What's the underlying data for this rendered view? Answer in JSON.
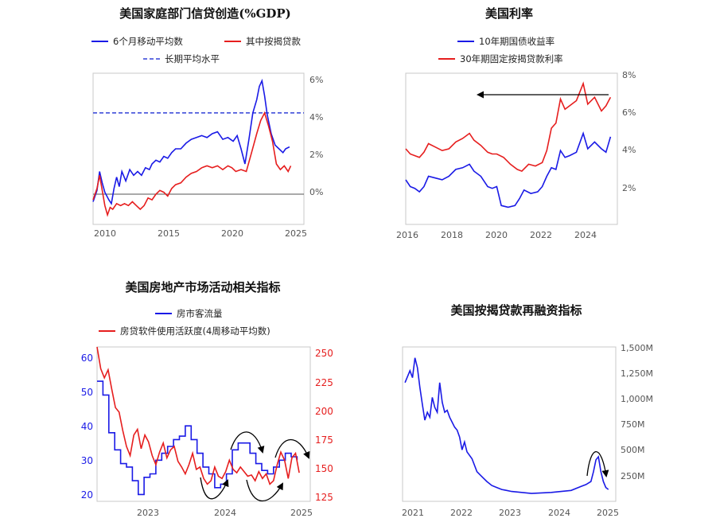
{
  "chart_data": [
    {
      "type": "line",
      "title": "美国家庭部门信贷创造(%GDP)",
      "legend": [
        "6个月移动平均数",
        "其中按揭贷款",
        "长期平均水平"
      ],
      "colors": {
        "blue": "#1a1ae6",
        "red": "#e61e1e",
        "dashed": "#3040d8"
      },
      "x_ticks": [
        "2010",
        "2015",
        "2020",
        "2025"
      ],
      "y_ticks": [
        "6%",
        "4%",
        "2%",
        "0%"
      ],
      "xlim": [
        2009.5,
        2025.6
      ],
      "ylim": [
        -1.6,
        6.4
      ],
      "long_term_average": 4.3,
      "series": [
        {
          "name": "6个月移动平均数",
          "x": [
            2009.5,
            2009.8,
            2010.0,
            2010.2,
            2010.4,
            2010.7,
            2010.9,
            2011.1,
            2011.3,
            2011.5,
            2011.7,
            2012.0,
            2012.3,
            2012.6,
            2012.9,
            2013.2,
            2013.5,
            2013.8,
            2014.0,
            2014.3,
            2014.6,
            2014.9,
            2015.2,
            2015.5,
            2015.8,
            2016.2,
            2016.6,
            2017.0,
            2017.4,
            2017.8,
            2018.2,
            2018.6,
            2019.0,
            2019.4,
            2019.8,
            2020.2,
            2020.5,
            2020.8,
            2021.1,
            2021.4,
            2021.7,
            2022.0,
            2022.2,
            2022.4,
            2022.6,
            2022.8,
            2023.1,
            2023.4,
            2023.7,
            2024.0,
            2024.2,
            2024.5
          ],
          "y": [
            -0.4,
            0.2,
            1.2,
            0.6,
            0.1,
            -0.3,
            -0.5,
            0.3,
            0.9,
            0.4,
            1.2,
            0.7,
            1.3,
            1.0,
            1.2,
            1.0,
            1.4,
            1.3,
            1.6,
            1.8,
            1.7,
            2.0,
            1.9,
            2.2,
            2.4,
            2.4,
            2.7,
            2.9,
            3.0,
            3.1,
            3.0,
            3.2,
            3.3,
            2.9,
            3.0,
            2.8,
            3.1,
            2.4,
            1.6,
            2.9,
            4.3,
            5.0,
            5.7,
            6.0,
            5.2,
            4.2,
            3.2,
            2.6,
            2.4,
            2.2,
            2.4,
            2.5
          ]
        },
        {
          "name": "其中按揭贷款",
          "x": [
            2009.5,
            2009.8,
            2010.0,
            2010.2,
            2010.4,
            2010.6,
            2010.8,
            2011.0,
            2011.3,
            2011.6,
            2011.9,
            2012.2,
            2012.5,
            2012.8,
            2013.1,
            2013.4,
            2013.7,
            2014.0,
            2014.3,
            2014.6,
            2014.9,
            2015.2,
            2015.5,
            2015.8,
            2016.2,
            2016.6,
            2017.0,
            2017.4,
            2017.8,
            2018.2,
            2018.6,
            2019.0,
            2019.4,
            2019.8,
            2020.1,
            2020.4,
            2020.8,
            2021.2,
            2021.6,
            2022.0,
            2022.3,
            2022.6,
            2022.9,
            2023.2,
            2023.5,
            2023.8,
            2024.1,
            2024.4,
            2024.6
          ],
          "y": [
            -0.3,
            0.3,
            1.0,
            0.2,
            -0.6,
            -1.1,
            -0.7,
            -0.8,
            -0.5,
            -0.6,
            -0.5,
            -0.6,
            -0.4,
            -0.6,
            -0.8,
            -0.6,
            -0.2,
            -0.3,
            0.0,
            0.2,
            0.1,
            -0.1,
            0.3,
            0.5,
            0.6,
            0.9,
            1.1,
            1.2,
            1.4,
            1.5,
            1.4,
            1.5,
            1.3,
            1.5,
            1.4,
            1.2,
            1.3,
            1.2,
            2.2,
            3.2,
            3.9,
            4.3,
            3.6,
            2.8,
            1.6,
            1.3,
            1.5,
            1.2,
            1.5
          ]
        }
      ]
    },
    {
      "type": "line",
      "title": "美国利率",
      "legend": [
        "10年期国债收益率",
        "30年期固定按揭贷款利率"
      ],
      "colors": {
        "blue": "#1a1ae6",
        "red": "#e61e1e"
      },
      "x_ticks": [
        "2016",
        "2018",
        "2020",
        "2022",
        "2024"
      ],
      "y_ticks": [
        "8%",
        "6%",
        "4%",
        "2%"
      ],
      "xlim": [
        2016.0,
        2025.3
      ],
      "ylim": [
        -0.4,
        8.4
      ],
      "series": [
        {
          "name": "10年期国债收益率",
          "x": [
            2016.0,
            2016.2,
            2016.4,
            2016.6,
            2016.8,
            2017.0,
            2017.3,
            2017.6,
            2017.9,
            2018.2,
            2018.5,
            2018.8,
            2019.0,
            2019.3,
            2019.6,
            2019.8,
            2020.0,
            2020.2,
            2020.5,
            2020.8,
            2021.0,
            2021.2,
            2021.5,
            2021.8,
            2022.0,
            2022.2,
            2022.4,
            2022.6,
            2022.8,
            2023.0,
            2023.2,
            2023.5,
            2023.8,
            2024.0,
            2024.3,
            2024.6,
            2024.8,
            2025.0
          ],
          "y": [
            2.2,
            1.8,
            1.7,
            1.5,
            1.8,
            2.4,
            2.3,
            2.2,
            2.4,
            2.8,
            2.9,
            3.1,
            2.7,
            2.4,
            1.8,
            1.7,
            1.8,
            0.7,
            0.6,
            0.7,
            1.1,
            1.6,
            1.4,
            1.5,
            1.8,
            2.4,
            2.9,
            2.8,
            3.9,
            3.5,
            3.6,
            3.8,
            4.9,
            4.0,
            4.4,
            4.0,
            3.8,
            4.7
          ]
        },
        {
          "name": "30年期固定按揭贷款利率",
          "x": [
            2016.0,
            2016.2,
            2016.4,
            2016.6,
            2016.8,
            2017.0,
            2017.3,
            2017.6,
            2017.9,
            2018.2,
            2018.5,
            2018.8,
            2019.0,
            2019.3,
            2019.6,
            2019.8,
            2020.0,
            2020.3,
            2020.6,
            2020.9,
            2021.1,
            2021.4,
            2021.7,
            2022.0,
            2022.2,
            2022.4,
            2022.6,
            2022.8,
            2023.0,
            2023.2,
            2023.5,
            2023.8,
            2024.0,
            2024.3,
            2024.6,
            2024.8,
            2025.0
          ],
          "y": [
            4.0,
            3.7,
            3.6,
            3.5,
            3.8,
            4.3,
            4.1,
            3.9,
            4.0,
            4.4,
            4.6,
            4.9,
            4.5,
            4.2,
            3.8,
            3.7,
            3.7,
            3.5,
            3.1,
            2.8,
            2.7,
            3.1,
            3.0,
            3.2,
            3.9,
            5.2,
            5.5,
            6.9,
            6.3,
            6.5,
            6.8,
            7.8,
            6.6,
            7.0,
            6.2,
            6.5,
            7.0
          ]
        }
      ]
    },
    {
      "type": "line",
      "title": "美国房地产市场活动相关指标",
      "legend": [
        "房市客流量",
        "房贷软件使用活跃度(4周移动平均数)"
      ],
      "colors": {
        "blue": "#1a1ae6",
        "red": "#e61e1e"
      },
      "x_ticks": [
        "2023",
        "2024",
        "2025"
      ],
      "y_left_ticks": [
        "60",
        "50",
        "40",
        "30",
        "20"
      ],
      "y_right_ticks": [
        "250",
        "225",
        "200",
        "175",
        "150",
        "125"
      ],
      "xlim": [
        2022.3,
        2025.2
      ],
      "ylim_left": [
        18,
        63
      ],
      "ylim_right": [
        120,
        255
      ],
      "series": [
        {
          "name": "房市客流量",
          "axis": "left",
          "x": [
            2022.3,
            2022.38,
            2022.46,
            2022.54,
            2022.62,
            2022.7,
            2022.78,
            2022.86,
            2022.94,
            2023.02,
            2023.1,
            2023.18,
            2023.26,
            2023.34,
            2023.42,
            2023.5,
            2023.58,
            2023.66,
            2023.74,
            2023.82,
            2023.9,
            2023.98,
            2024.06,
            2024.14,
            2024.22,
            2024.3,
            2024.38,
            2024.46,
            2024.54,
            2024.62,
            2024.7,
            2024.78,
            2024.86,
            2024.94,
            2025.02
          ],
          "y": [
            53,
            49,
            38,
            33,
            29,
            28,
            24,
            20,
            25,
            26,
            30,
            32,
            34,
            36,
            37,
            40,
            36,
            32,
            28,
            26,
            22,
            23,
            26,
            33,
            35,
            35,
            32,
            29,
            27,
            26,
            28,
            30,
            32,
            31,
            30
          ]
        },
        {
          "name": "房贷软件使用活跃度(4周移动平均数)",
          "axis": "right",
          "x": [
            2022.3,
            2022.35,
            2022.4,
            2022.45,
            2022.5,
            2022.55,
            2022.6,
            2022.65,
            2022.7,
            2022.75,
            2022.8,
            2022.85,
            2022.9,
            2022.95,
            2023.0,
            2023.05,
            2023.1,
            2023.15,
            2023.2,
            2023.25,
            2023.3,
            2023.35,
            2023.4,
            2023.45,
            2023.5,
            2023.55,
            2023.6,
            2023.65,
            2023.7,
            2023.75,
            2023.8,
            2023.85,
            2023.9,
            2023.95,
            2024.0,
            2024.05,
            2024.1,
            2024.15,
            2024.2,
            2024.25,
            2024.3,
            2024.35,
            2024.4,
            2024.45,
            2024.5,
            2024.55,
            2024.6,
            2024.65,
            2024.7,
            2024.75,
            2024.8,
            2024.85,
            2024.9,
            2024.95,
            2025.0,
            2025.05
          ],
          "y": [
            255,
            236,
            228,
            235,
            218,
            202,
            198,
            182,
            168,
            160,
            178,
            183,
            166,
            178,
            172,
            160,
            152,
            163,
            171,
            158,
            165,
            168,
            155,
            150,
            144,
            152,
            162,
            148,
            150,
            140,
            135,
            138,
            150,
            142,
            140,
            146,
            156,
            148,
            145,
            150,
            146,
            142,
            143,
            138,
            146,
            140,
            144,
            135,
            138,
            152,
            163,
            156,
            140,
            158,
            162,
            145
          ]
        }
      ]
    },
    {
      "type": "line",
      "title": "美国按揭贷款再融资指标",
      "colors": {
        "blue": "#1a1ae6"
      },
      "x_ticks": [
        "2021",
        "2022",
        "2023",
        "2024",
        "2025"
      ],
      "y_ticks": [
        "1,500M",
        "1,250M",
        "1,000M",
        "750M",
        "500M",
        "250M"
      ],
      "xlim": [
        2020.8,
        2025.1
      ],
      "ylim": [
        0,
        1560
      ],
      "series": [
        {
          "name": "",
          "x": [
            2020.85,
            2020.95,
            2021.0,
            2021.05,
            2021.1,
            2021.15,
            2021.2,
            2021.25,
            2021.3,
            2021.35,
            2021.4,
            2021.45,
            2021.5,
            2021.55,
            2021.6,
            2021.65,
            2021.7,
            2021.75,
            2021.8,
            2021.85,
            2021.9,
            2021.95,
            2022.0,
            2022.05,
            2022.1,
            2022.2,
            2022.3,
            2022.4,
            2022.5,
            2022.6,
            2022.7,
            2022.8,
            2022.9,
            2023.0,
            2023.2,
            2023.4,
            2023.6,
            2023.8,
            2024.0,
            2024.2,
            2024.4,
            2024.5,
            2024.6,
            2024.65,
            2024.7,
            2024.75,
            2024.8,
            2024.85,
            2024.9,
            2024.95
          ],
          "y": [
            1200,
            1320,
            1250,
            1450,
            1350,
            1150,
            980,
            820,
            900,
            850,
            1050,
            950,
            900,
            1200,
            1000,
            900,
            920,
            850,
            800,
            750,
            720,
            650,
            520,
            600,
            500,
            430,
            300,
            250,
            200,
            160,
            140,
            120,
            110,
            100,
            90,
            80,
            85,
            90,
            100,
            110,
            150,
            170,
            200,
            300,
            420,
            450,
            300,
            200,
            140,
            120
          ]
        }
      ]
    }
  ]
}
